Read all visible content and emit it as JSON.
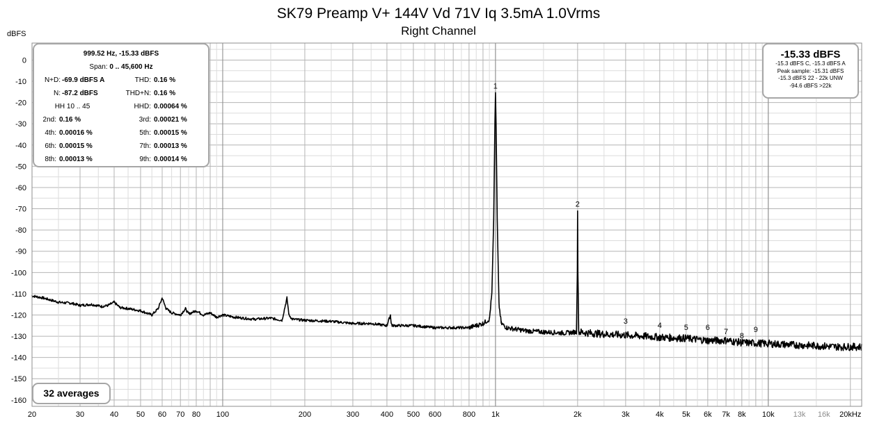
{
  "title": "SK79 Preamp V+ 144V Vd 71V Iq 3.5mA 1.0Vrms",
  "subtitle": "Right Channel",
  "y_unit": "dBFS",
  "stats": {
    "peak_line": "999.52 Hz, -15.33 dBFS",
    "span_label": "Span:",
    "span_value": "0 .. 45,600 Hz",
    "nd_label": "N+D:",
    "nd_value": "-69.9 dBFS A",
    "thd_label": "THD:",
    "thd_value": "0.16 %",
    "n_label": "N:",
    "n_value": "-87.2 dBFS",
    "thdn_label": "THD+N:",
    "thdn_value": "0.16 %",
    "hh_range": "HH 10 .. 45",
    "hhd_label": "HHD:",
    "hhd_value": "0.00064 %",
    "h2_label": "2nd:",
    "h2_value": "0.16 %",
    "h3_label": "3rd:",
    "h3_value": "0.00021 %",
    "h4_label": "4th:",
    "h4_value": "0.00016 %",
    "h5_label": "5th:",
    "h5_value": "0.00015 %",
    "h6_label": "6th:",
    "h6_value": "0.00015 %",
    "h7_label": "7th:",
    "h7_value": "0.00013 %",
    "h8_label": "8th:",
    "h8_value": "0.00013 %",
    "h9_label": "9th:",
    "h9_value": "0.00014 %"
  },
  "level": {
    "main": "-15.33 dBFS",
    "line1": "-15.3 dBFS C, -15.3 dBFS A",
    "line2": "Peak sample: -15.31 dBFS",
    "line3": "-15.3 dBFS 22 - 22k UNW",
    "line4": "-94.6 dBFS >22k"
  },
  "averages_label": "32 averages",
  "colors": {
    "trace": "#000000",
    "grid_major": "#b4b4b4",
    "grid_minor": "#dcdcdc",
    "box_border": "#a6a6a6",
    "faded_tick": "#8c8c8c"
  },
  "chart_data": {
    "type": "line",
    "xscale": "log",
    "xlim": [
      20,
      22000
    ],
    "ylim": [
      -163,
      8
    ],
    "ylabel": "dBFS",
    "grid": true,
    "y_ticks": [
      0,
      -10,
      -20,
      -30,
      -40,
      -50,
      -60,
      -70,
      -80,
      -90,
      -100,
      -110,
      -120,
      -130,
      -140,
      -150,
      -160
    ],
    "x_ticks": [
      {
        "f": 20,
        "label": "20"
      },
      {
        "f": 30,
        "label": "30"
      },
      {
        "f": 40,
        "label": "40"
      },
      {
        "f": 50,
        "label": "50"
      },
      {
        "f": 60,
        "label": "60"
      },
      {
        "f": 70,
        "label": "70"
      },
      {
        "f": 80,
        "label": "80"
      },
      {
        "f": 100,
        "label": "100"
      },
      {
        "f": 200,
        "label": "200"
      },
      {
        "f": 300,
        "label": "300"
      },
      {
        "f": 400,
        "label": "400"
      },
      {
        "f": 500,
        "label": "500"
      },
      {
        "f": 600,
        "label": "600"
      },
      {
        "f": 800,
        "label": "800"
      },
      {
        "f": 1000,
        "label": "1k"
      },
      {
        "f": 2000,
        "label": "2k"
      },
      {
        "f": 3000,
        "label": "3k"
      },
      {
        "f": 4000,
        "label": "4k"
      },
      {
        "f": 5000,
        "label": "5k"
      },
      {
        "f": 6000,
        "label": "6k"
      },
      {
        "f": 7000,
        "label": "7k"
      },
      {
        "f": 8000,
        "label": "8k"
      },
      {
        "f": 10000,
        "label": "10k"
      },
      {
        "f": 13000,
        "label": "13k",
        "faded": true
      },
      {
        "f": 16000,
        "label": "16k",
        "faded": true
      },
      {
        "f": 20000,
        "label": "20kHz"
      }
    ],
    "harmonic_markers": [
      {
        "label": "1",
        "f": 1000,
        "db": -15.33
      },
      {
        "label": "2",
        "f": 2000,
        "db": -71
      },
      {
        "label": "3",
        "f": 3000,
        "db": -126
      },
      {
        "label": "4",
        "f": 4000,
        "db": -128
      },
      {
        "label": "5",
        "f": 5000,
        "db": -129
      },
      {
        "label": "6",
        "f": 6000,
        "db": -129
      },
      {
        "label": "7",
        "f": 7000,
        "db": -131
      },
      {
        "label": "8",
        "f": 8000,
        "db": -133
      },
      {
        "label": "9",
        "f": 9000,
        "db": -130
      }
    ],
    "series": [
      {
        "x": [
          20,
          22,
          25,
          28,
          30,
          33,
          36,
          38,
          40,
          42,
          45,
          50,
          55,
          58,
          60,
          62,
          65,
          70,
          73,
          75,
          80,
          85,
          90,
          95,
          100,
          110,
          130,
          150,
          165,
          172,
          175,
          180,
          200,
          250,
          300,
          350,
          400,
          412,
          415,
          418,
          430,
          500,
          600,
          700,
          800,
          900,
          950,
          970,
          985,
          995,
          1000,
          1005,
          1015,
          1030,
          1050,
          1100,
          1300,
          1500,
          1800,
          1980,
          1995,
          2000,
          2005,
          2020,
          2200,
          2500,
          3000,
          3500,
          4000,
          5000,
          6000,
          7000,
          8000,
          10000,
          12000,
          15000,
          18000,
          20000,
          22000
        ],
        "y": [
          -111,
          -112,
          -114,
          -114.5,
          -115.5,
          -115,
          -116,
          -115.5,
          -114,
          -116.5,
          -117,
          -118,
          -120,
          -117,
          -112,
          -117,
          -119,
          -120,
          -117,
          -119.5,
          -118,
          -120,
          -119,
          -121,
          -120,
          -121,
          -122,
          -121.5,
          -122.5,
          -112,
          -120,
          -122,
          -122.5,
          -123,
          -124,
          -124,
          -125,
          -120,
          -124,
          -125,
          -125,
          -125,
          -126,
          -126,
          -126,
          -124,
          -122,
          -110,
          -75,
          -30,
          -15.33,
          -30,
          -75,
          -115,
          -124,
          -126,
          -127.5,
          -128,
          -128.5,
          -128,
          -100,
          -71,
          -100,
          -128,
          -128.5,
          -129,
          -129.5,
          -130,
          -130.5,
          -131,
          -132,
          -132,
          -133,
          -133.5,
          -134,
          -134.5,
          -135,
          -135,
          -135
        ]
      }
    ]
  }
}
